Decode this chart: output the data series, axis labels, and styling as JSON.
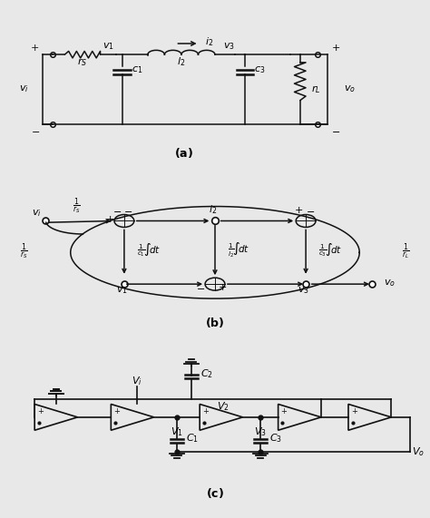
{
  "bg_color": "#e8e8e8",
  "panel_bg": "#ffffff",
  "lc": "#111111",
  "lw": 1.1
}
